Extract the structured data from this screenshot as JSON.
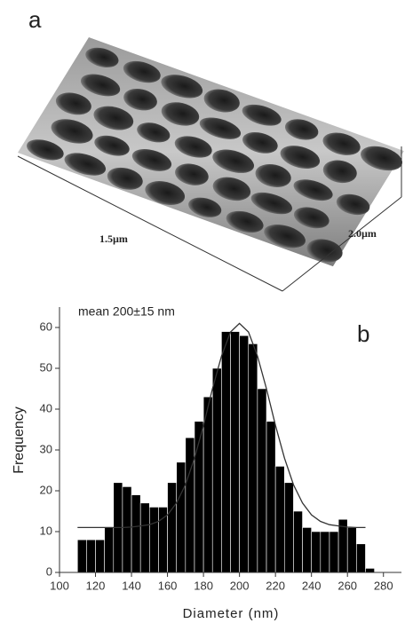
{
  "panel_a": {
    "label": "a",
    "x_dimension": "1.5µm",
    "y_dimension": "2.0µm"
  },
  "chart_data": {
    "type": "histogram",
    "panel_label": "b",
    "annotation": "mean 200±15 nm",
    "x_label": "Diameter (nm)",
    "y_label": "Frequency",
    "color": "#000000",
    "bins": [
      110,
      115,
      120,
      125,
      130,
      135,
      140,
      145,
      150,
      155,
      160,
      165,
      170,
      175,
      180,
      185,
      190,
      195,
      200,
      205,
      210,
      215,
      220,
      225,
      230,
      235,
      240,
      245,
      250,
      255,
      260,
      265,
      270,
      275
    ],
    "values": [
      8,
      8,
      8,
      11,
      22,
      21,
      19,
      17,
      16,
      16,
      22,
      27,
      33,
      37,
      43,
      50,
      59,
      59,
      58,
      56,
      45,
      37,
      26,
      22,
      15,
      11,
      10,
      10,
      10,
      13,
      11,
      7,
      1
    ],
    "fit": {
      "color": "#333333",
      "x": [
        110,
        115,
        120,
        125,
        130,
        135,
        140,
        145,
        150,
        155,
        160,
        165,
        170,
        175,
        180,
        185,
        190,
        195,
        200,
        205,
        210,
        215,
        220,
        225,
        230,
        235,
        240,
        245,
        250,
        255,
        260,
        265,
        270
      ],
      "values": [
        11,
        11,
        11,
        11,
        11,
        11,
        11.1,
        11.4,
        11.7,
        12.5,
        14.1,
        17,
        21.5,
        28,
        36,
        45,
        53,
        58.9,
        61,
        58.9,
        53,
        45,
        36,
        28,
        21.5,
        17,
        14.1,
        12.5,
        11.7,
        11.4,
        11.1,
        11,
        11
      ]
    },
    "xlim": [
      100,
      290
    ],
    "ylim": [
      0,
      65
    ],
    "xticks": [
      100,
      120,
      140,
      160,
      180,
      200,
      220,
      240,
      260,
      280
    ],
    "yticks": [
      0,
      10,
      20,
      30,
      40,
      50,
      60
    ]
  }
}
